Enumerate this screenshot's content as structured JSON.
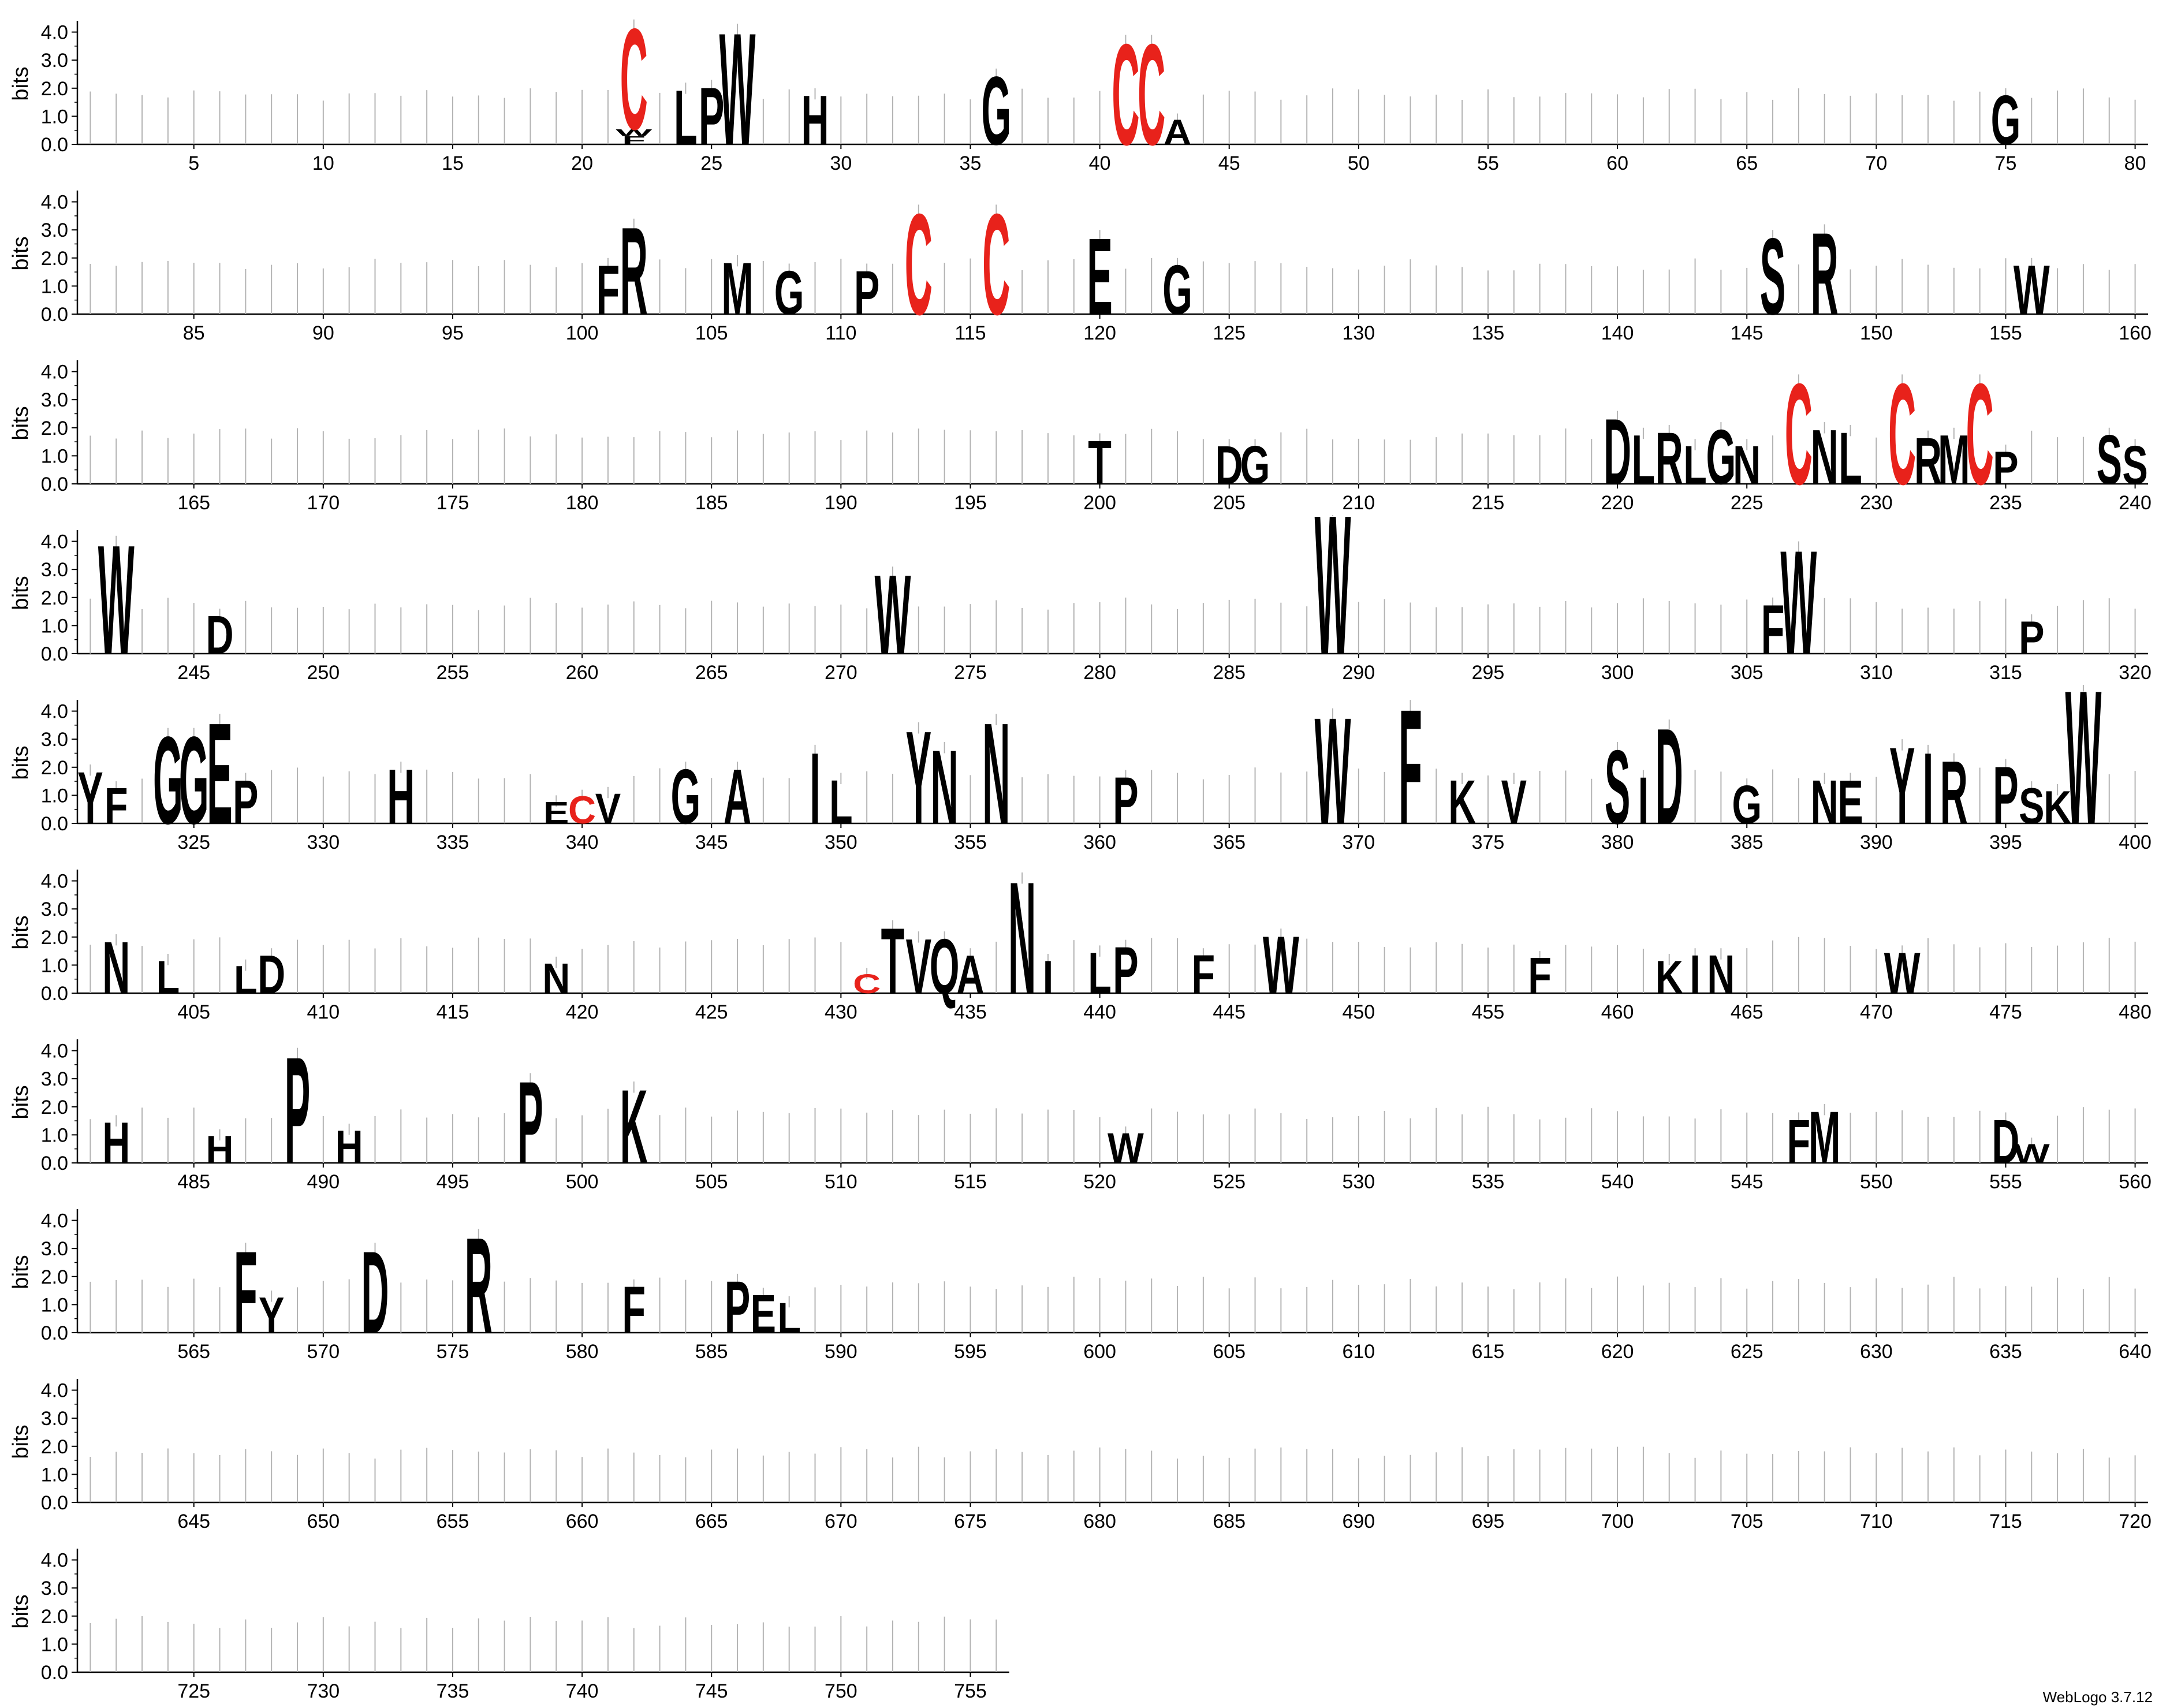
{
  "chart_data": {
    "type": "sequence-logo",
    "ylabel": "bits",
    "ylim": [
      0,
      4.32
    ],
    "yticks": [
      "0.0",
      "1.0",
      "2.0",
      "3.0",
      "4.0"
    ],
    "positions_per_row": 80,
    "last_position": 756,
    "xtick_step": 5,
    "colors": {
      "default": "#000000",
      "cysteine": "#e8221b",
      "errorbar": "#b4b4b4",
      "axis": "#000000"
    },
    "stacks": [
      {
        "pos": 22,
        "letters": [
          [
            "F",
            0.3
          ],
          [
            "W",
            0.25
          ],
          [
            "C",
            3.7
          ]
        ]
      },
      {
        "pos": 24,
        "letters": [
          [
            "L",
            2.0
          ]
        ]
      },
      {
        "pos": 25,
        "letters": [
          [
            "P",
            2.1
          ]
        ]
      },
      {
        "pos": 26,
        "letters": [
          [
            "W",
            4.1
          ]
        ]
      },
      {
        "pos": 29,
        "letters": [
          [
            "H",
            1.8
          ]
        ]
      },
      {
        "pos": 36,
        "letters": [
          [
            "G",
            2.5
          ]
        ]
      },
      {
        "pos": 41,
        "letters": [
          [
            "C",
            3.7
          ]
        ]
      },
      {
        "pos": 42,
        "letters": [
          [
            "C",
            3.7
          ]
        ]
      },
      {
        "pos": 43,
        "letters": [
          [
            "A",
            0.9
          ]
        ]
      },
      {
        "pos": 75,
        "letters": [
          [
            "G",
            1.8
          ]
        ]
      },
      {
        "pos": 101,
        "letters": [
          [
            "F",
            1.8
          ]
        ]
      },
      {
        "pos": 102,
        "letters": [
          [
            "R",
            3.2
          ]
        ]
      },
      {
        "pos": 106,
        "letters": [
          [
            "M",
            1.9
          ]
        ]
      },
      {
        "pos": 108,
        "letters": [
          [
            "G",
            1.6
          ]
        ]
      },
      {
        "pos": 111,
        "letters": [
          [
            "P",
            1.6
          ]
        ]
      },
      {
        "pos": 113,
        "letters": [
          [
            "C",
            3.7
          ]
        ]
      },
      {
        "pos": 116,
        "letters": [
          [
            "C",
            3.7
          ]
        ]
      },
      {
        "pos": 120,
        "letters": [
          [
            "E",
            2.8
          ]
        ]
      },
      {
        "pos": 123,
        "letters": [
          [
            "G",
            1.8
          ]
        ]
      },
      {
        "pos": 146,
        "letters": [
          [
            "S",
            2.8
          ]
        ]
      },
      {
        "pos": 148,
        "letters": [
          [
            "R",
            3.0
          ]
        ]
      },
      {
        "pos": 156,
        "letters": [
          [
            "W",
            1.8
          ]
        ]
      },
      {
        "pos": 200,
        "letters": [
          [
            "T",
            1.6
          ]
        ]
      },
      {
        "pos": 205,
        "letters": [
          [
            "D",
            1.4
          ]
        ]
      },
      {
        "pos": 206,
        "letters": [
          [
            "G",
            1.4
          ]
        ]
      },
      {
        "pos": 220,
        "letters": [
          [
            "D",
            2.4
          ]
        ]
      },
      {
        "pos": 221,
        "letters": [
          [
            "L",
            1.8
          ]
        ]
      },
      {
        "pos": 222,
        "letters": [
          [
            "R",
            1.9
          ]
        ]
      },
      {
        "pos": 223,
        "letters": [
          [
            "L",
            1.4
          ]
        ]
      },
      {
        "pos": 224,
        "letters": [
          [
            "G",
            2.0
          ]
        ]
      },
      {
        "pos": 225,
        "letters": [
          [
            "N",
            1.4
          ]
        ]
      },
      {
        "pos": 227,
        "letters": [
          [
            "C",
            3.7
          ]
        ]
      },
      {
        "pos": 228,
        "letters": [
          [
            "N",
            2.0
          ]
        ]
      },
      {
        "pos": 229,
        "letters": [
          [
            "L",
            1.9
          ]
        ]
      },
      {
        "pos": 231,
        "letters": [
          [
            "C",
            3.7
          ]
        ]
      },
      {
        "pos": 232,
        "letters": [
          [
            "R",
            1.7
          ]
        ]
      },
      {
        "pos": 233,
        "letters": [
          [
            "M",
            1.8
          ]
        ]
      },
      {
        "pos": 234,
        "letters": [
          [
            "C",
            3.7
          ]
        ]
      },
      {
        "pos": 235,
        "letters": [
          [
            "P",
            1.2
          ]
        ]
      },
      {
        "pos": 239,
        "letters": [
          [
            "S",
            1.8
          ]
        ]
      },
      {
        "pos": 240,
        "letters": [
          [
            "S",
            1.4
          ]
        ]
      },
      {
        "pos": 242,
        "letters": [
          [
            "W",
            4.0
          ]
        ]
      },
      {
        "pos": 246,
        "letters": [
          [
            "D",
            1.4
          ]
        ]
      },
      {
        "pos": 272,
        "letters": [
          [
            "W",
            2.9
          ]
        ]
      },
      {
        "pos": 289,
        "letters": [
          [
            "W",
            5.1
          ]
        ]
      },
      {
        "pos": 306,
        "letters": [
          [
            "F",
            1.8
          ]
        ]
      },
      {
        "pos": 307,
        "letters": [
          [
            "W",
            3.8
          ]
        ]
      },
      {
        "pos": 316,
        "letters": [
          [
            "P",
            1.2
          ]
        ]
      },
      {
        "pos": 321,
        "letters": [
          [
            "Y",
            1.9
          ]
        ]
      },
      {
        "pos": 322,
        "letters": [
          [
            "F",
            1.3
          ]
        ]
      },
      {
        "pos": 324,
        "letters": [
          [
            "G",
            3.2
          ]
        ]
      },
      {
        "pos": 325,
        "letters": [
          [
            "G",
            3.2
          ]
        ]
      },
      {
        "pos": 326,
        "letters": [
          [
            "E",
            3.7
          ]
        ]
      },
      {
        "pos": 327,
        "letters": [
          [
            "P",
            1.6
          ]
        ]
      },
      {
        "pos": 333,
        "letters": [
          [
            "H",
            2.0
          ]
        ]
      },
      {
        "pos": 339,
        "letters": [
          [
            "E",
            0.8
          ]
        ]
      },
      {
        "pos": 340,
        "letters": [
          [
            "C",
            1.0
          ]
        ]
      },
      {
        "pos": 341,
        "letters": [
          [
            "V",
            1.1
          ]
        ]
      },
      {
        "pos": 344,
        "letters": [
          [
            "G",
            2.0
          ]
        ]
      },
      {
        "pos": 346,
        "letters": [
          [
            "A",
            2.0
          ]
        ]
      },
      {
        "pos": 349,
        "letters": [
          [
            "I",
            2.6
          ]
        ]
      },
      {
        "pos": 350,
        "letters": [
          [
            "L",
            1.6
          ]
        ]
      },
      {
        "pos": 353,
        "letters": [
          [
            "Y",
            3.4
          ]
        ]
      },
      {
        "pos": 354,
        "letters": [
          [
            "N",
            2.7
          ]
        ]
      },
      {
        "pos": 356,
        "letters": [
          [
            "N",
            3.7
          ]
        ]
      },
      {
        "pos": 361,
        "letters": [
          [
            "P",
            1.7
          ]
        ]
      },
      {
        "pos": 369,
        "letters": [
          [
            "W",
            3.9
          ]
        ]
      },
      {
        "pos": 372,
        "letters": [
          [
            "F",
            4.2
          ]
        ]
      },
      {
        "pos": 374,
        "letters": [
          [
            "K",
            1.6
          ]
        ]
      },
      {
        "pos": 376,
        "letters": [
          [
            "V",
            1.6
          ]
        ]
      },
      {
        "pos": 380,
        "letters": [
          [
            "S",
            2.7
          ]
        ]
      },
      {
        "pos": 381,
        "letters": [
          [
            "I",
            1.7
          ]
        ]
      },
      {
        "pos": 382,
        "letters": [
          [
            "D",
            3.5
          ]
        ]
      },
      {
        "pos": 385,
        "letters": [
          [
            "G",
            1.4
          ]
        ]
      },
      {
        "pos": 388,
        "letters": [
          [
            "N",
            1.6
          ]
        ]
      },
      {
        "pos": 389,
        "letters": [
          [
            "E",
            1.6
          ]
        ]
      },
      {
        "pos": 391,
        "letters": [
          [
            "Y",
            2.8
          ]
        ]
      },
      {
        "pos": 392,
        "letters": [
          [
            "I",
            2.6
          ]
        ]
      },
      {
        "pos": 393,
        "letters": [
          [
            "R",
            2.3
          ]
        ]
      },
      {
        "pos": 395,
        "letters": [
          [
            "P",
            2.1
          ]
        ]
      },
      {
        "pos": 396,
        "letters": [
          [
            "S",
            1.3
          ]
        ]
      },
      {
        "pos": 397,
        "letters": [
          [
            "K",
            1.2
          ]
        ]
      },
      {
        "pos": 398,
        "letters": [
          [
            "W",
            4.9
          ]
        ]
      },
      {
        "pos": 402,
        "letters": [
          [
            "N",
            1.9
          ]
        ]
      },
      {
        "pos": 404,
        "letters": [
          [
            "L",
            1.2
          ]
        ]
      },
      {
        "pos": 407,
        "letters": [
          [
            "L",
            1.0
          ]
        ]
      },
      {
        "pos": 408,
        "letters": [
          [
            "D",
            1.4
          ]
        ]
      },
      {
        "pos": 419,
        "letters": [
          [
            "N",
            1.1
          ]
        ]
      },
      {
        "pos": 431,
        "letters": [
          [
            "C",
            0.7
          ]
        ]
      },
      {
        "pos": 432,
        "letters": [
          [
            "T",
            2.4
          ]
        ]
      },
      {
        "pos": 433,
        "letters": [
          [
            "V",
            2.0
          ]
        ]
      },
      {
        "pos": 434,
        "letters": [
          [
            "Q",
            2.0
          ]
        ]
      },
      {
        "pos": 435,
        "letters": [
          [
            "A",
            1.4
          ]
        ]
      },
      {
        "pos": 437,
        "letters": [
          [
            "N",
            4.1
          ]
        ]
      },
      {
        "pos": 438,
        "letters": [
          [
            "I",
            1.2
          ]
        ]
      },
      {
        "pos": 440,
        "letters": [
          [
            "L",
            1.5
          ]
        ]
      },
      {
        "pos": 441,
        "letters": [
          [
            "P",
            1.7
          ]
        ]
      },
      {
        "pos": 444,
        "letters": [
          [
            "F",
            1.4
          ]
        ]
      },
      {
        "pos": 447,
        "letters": [
          [
            "W",
            2.1
          ]
        ]
      },
      {
        "pos": 457,
        "letters": [
          [
            "F",
            1.3
          ]
        ]
      },
      {
        "pos": 462,
        "letters": [
          [
            "K",
            1.2
          ]
        ]
      },
      {
        "pos": 463,
        "letters": [
          [
            "I",
            1.4
          ]
        ]
      },
      {
        "pos": 464,
        "letters": [
          [
            "N",
            1.4
          ]
        ]
      },
      {
        "pos": 471,
        "letters": [
          [
            "W",
            1.5
          ]
        ]
      },
      {
        "pos": 482,
        "letters": [
          [
            "H",
            1.5
          ]
        ]
      },
      {
        "pos": 486,
        "letters": [
          [
            "H",
            1.0
          ]
        ]
      },
      {
        "pos": 489,
        "letters": [
          [
            "P",
            3.9
          ]
        ]
      },
      {
        "pos": 491,
        "letters": [
          [
            "H",
            1.2
          ]
        ]
      },
      {
        "pos": 498,
        "letters": [
          [
            "P",
            3.0
          ]
        ]
      },
      {
        "pos": 502,
        "letters": [
          [
            "K",
            2.7
          ]
        ]
      },
      {
        "pos": 521,
        "letters": [
          [
            "W",
            1.1
          ]
        ]
      },
      {
        "pos": 547,
        "letters": [
          [
            "F",
            1.6
          ]
        ]
      },
      {
        "pos": 548,
        "letters": [
          [
            "M",
            1.9
          ]
        ]
      },
      {
        "pos": 555,
        "letters": [
          [
            "D",
            1.6
          ]
        ]
      },
      {
        "pos": 556,
        "letters": [
          [
            "W",
            0.7
          ]
        ]
      },
      {
        "pos": 567,
        "letters": [
          [
            "F",
            3.0
          ]
        ]
      },
      {
        "pos": 568,
        "letters": [
          [
            "Y",
            1.3
          ]
        ]
      },
      {
        "pos": 572,
        "letters": [
          [
            "D",
            3.0
          ]
        ]
      },
      {
        "pos": 576,
        "letters": [
          [
            "R",
            3.5
          ]
        ]
      },
      {
        "pos": 582,
        "letters": [
          [
            "F",
            1.7
          ]
        ]
      },
      {
        "pos": 586,
        "letters": [
          [
            "P",
            1.9
          ]
        ]
      },
      {
        "pos": 587,
        "letters": [
          [
            "E",
            1.4
          ]
        ]
      },
      {
        "pos": 588,
        "letters": [
          [
            "L",
            1.1
          ]
        ]
      }
    ]
  },
  "credit": "WebLogo 3.7.12"
}
